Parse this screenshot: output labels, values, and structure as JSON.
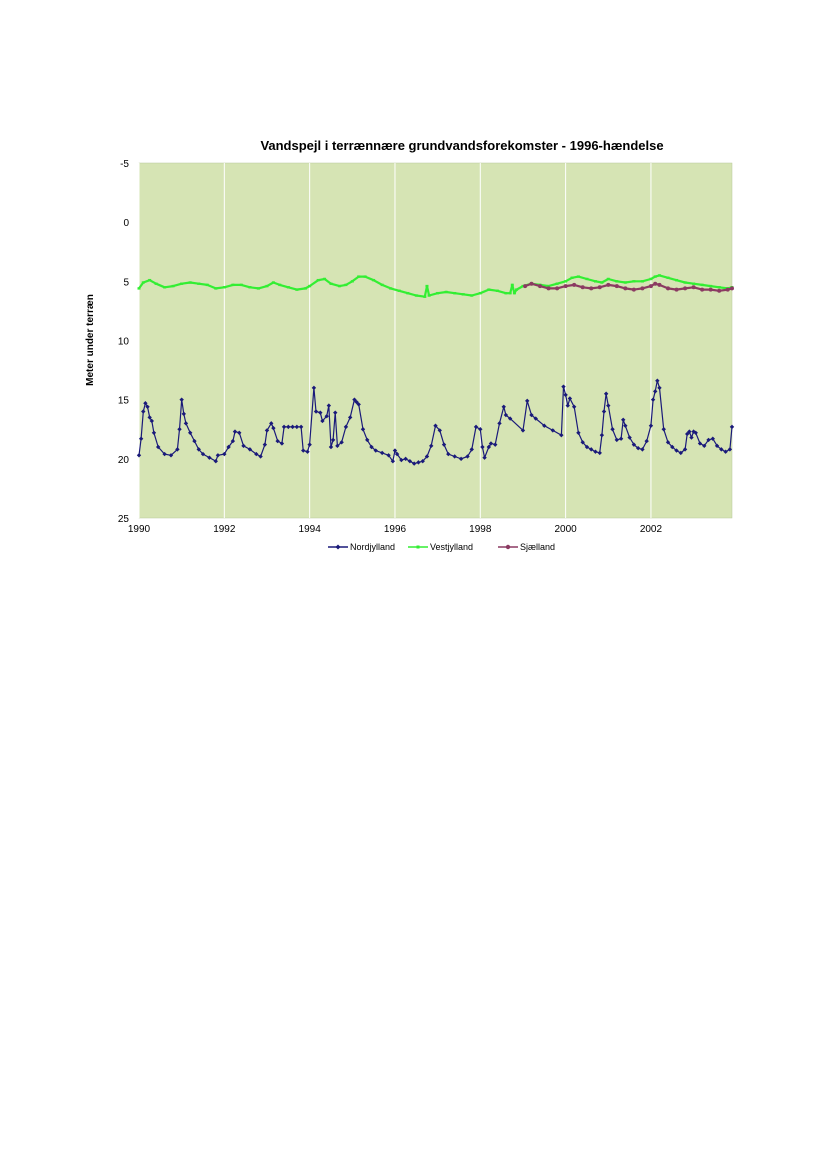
{
  "chart_data": {
    "type": "line",
    "title": "Vandspejl i terrænnære grundvandsforekomster - 1996-hændelse",
    "xlabel": "",
    "ylabel": "Meter under terræn",
    "xlim": [
      1990,
      2003.9
    ],
    "ylim": [
      -5,
      25
    ],
    "y_inverted": true,
    "xticks": [
      "1990",
      "1992",
      "1994",
      "1996",
      "1998",
      "2000",
      "2002"
    ],
    "yticks": [
      "-5",
      "0",
      "5",
      "10",
      "15",
      "20",
      "25"
    ],
    "grid": "vertical",
    "plot_background": "#d6e4b4",
    "legend_position": "bottom",
    "series": [
      {
        "name": "Nordjylland",
        "color": "#1a1a7a",
        "marker": "diamond",
        "points": [
          [
            1990.0,
            19.7
          ],
          [
            1990.05,
            18.3
          ],
          [
            1990.1,
            16.0
          ],
          [
            1990.15,
            15.3
          ],
          [
            1990.2,
            15.6
          ],
          [
            1990.25,
            16.5
          ],
          [
            1990.3,
            16.8
          ],
          [
            1990.35,
            17.8
          ],
          [
            1990.45,
            19.0
          ],
          [
            1990.6,
            19.6
          ],
          [
            1990.75,
            19.7
          ],
          [
            1990.9,
            19.2
          ],
          [
            1990.95,
            17.5
          ],
          [
            1991.0,
            15.0
          ],
          [
            1991.05,
            16.2
          ],
          [
            1991.1,
            17.0
          ],
          [
            1991.2,
            17.8
          ],
          [
            1991.3,
            18.5
          ],
          [
            1991.4,
            19.2
          ],
          [
            1991.5,
            19.6
          ],
          [
            1991.65,
            19.9
          ],
          [
            1991.8,
            20.2
          ],
          [
            1991.85,
            19.7
          ],
          [
            1992.0,
            19.6
          ],
          [
            1992.1,
            19.0
          ],
          [
            1992.2,
            18.5
          ],
          [
            1992.25,
            17.7
          ],
          [
            1992.35,
            17.8
          ],
          [
            1992.45,
            18.9
          ],
          [
            1992.6,
            19.2
          ],
          [
            1992.75,
            19.6
          ],
          [
            1992.85,
            19.8
          ],
          [
            1992.95,
            18.8
          ],
          [
            1993.0,
            17.6
          ],
          [
            1993.1,
            17.0
          ],
          [
            1993.15,
            17.4
          ],
          [
            1993.25,
            18.5
          ],
          [
            1993.35,
            18.7
          ],
          [
            1993.4,
            17.3
          ],
          [
            1993.5,
            17.3
          ],
          [
            1993.6,
            17.3
          ],
          [
            1993.7,
            17.3
          ],
          [
            1993.8,
            17.3
          ],
          [
            1993.85,
            19.3
          ],
          [
            1993.95,
            19.4
          ],
          [
            1994.0,
            18.8
          ],
          [
            1994.1,
            14.0
          ],
          [
            1994.15,
            16.0
          ],
          [
            1994.25,
            16.1
          ],
          [
            1994.3,
            16.8
          ],
          [
            1994.4,
            16.4
          ],
          [
            1994.45,
            15.5
          ],
          [
            1994.5,
            19.0
          ],
          [
            1994.55,
            18.4
          ],
          [
            1994.6,
            16.1
          ],
          [
            1994.65,
            18.9
          ],
          [
            1994.75,
            18.6
          ],
          [
            1994.85,
            17.3
          ],
          [
            1994.95,
            16.5
          ],
          [
            1995.05,
            15.0
          ],
          [
            1995.1,
            15.2
          ],
          [
            1995.15,
            15.4
          ],
          [
            1995.25,
            17.5
          ],
          [
            1995.35,
            18.4
          ],
          [
            1995.45,
            19.0
          ],
          [
            1995.55,
            19.3
          ],
          [
            1995.7,
            19.5
          ],
          [
            1995.85,
            19.7
          ],
          [
            1995.95,
            20.2
          ],
          [
            1996.0,
            19.3
          ],
          [
            1996.05,
            19.6
          ],
          [
            1996.15,
            20.1
          ],
          [
            1996.25,
            20.0
          ],
          [
            1996.35,
            20.2
          ],
          [
            1996.45,
            20.4
          ],
          [
            1996.55,
            20.3
          ],
          [
            1996.65,
            20.2
          ],
          [
            1996.75,
            19.8
          ],
          [
            1996.85,
            18.9
          ],
          [
            1996.95,
            17.2
          ],
          [
            1997.05,
            17.6
          ],
          [
            1997.15,
            18.8
          ],
          [
            1997.25,
            19.6
          ],
          [
            1997.4,
            19.8
          ],
          [
            1997.55,
            20.0
          ],
          [
            1997.7,
            19.8
          ],
          [
            1997.8,
            19.2
          ],
          [
            1997.9,
            17.3
          ],
          [
            1998.0,
            17.5
          ],
          [
            1998.05,
            19.0
          ],
          [
            1998.1,
            19.9
          ],
          [
            1998.2,
            19.0
          ],
          [
            1998.25,
            18.7
          ],
          [
            1998.35,
            18.8
          ],
          [
            1998.45,
            17.0
          ],
          [
            1998.55,
            15.6
          ],
          [
            1998.6,
            16.3
          ],
          [
            1998.7,
            16.6
          ],
          [
            1999.0,
            17.6
          ],
          [
            1999.1,
            15.1
          ],
          [
            1999.2,
            16.3
          ],
          [
            1999.3,
            16.6
          ],
          [
            1999.5,
            17.2
          ],
          [
            1999.7,
            17.6
          ],
          [
            1999.9,
            18.0
          ],
          [
            1999.95,
            13.9
          ],
          [
            2000.0,
            14.6
          ],
          [
            2000.05,
            15.5
          ],
          [
            2000.1,
            14.9
          ],
          [
            2000.2,
            15.6
          ],
          [
            2000.3,
            17.8
          ],
          [
            2000.4,
            18.6
          ],
          [
            2000.5,
            19.0
          ],
          [
            2000.6,
            19.2
          ],
          [
            2000.7,
            19.4
          ],
          [
            2000.8,
            19.5
          ],
          [
            2000.85,
            18.0
          ],
          [
            2000.9,
            16.0
          ],
          [
            2000.95,
            14.5
          ],
          [
            2001.0,
            15.5
          ],
          [
            2001.1,
            17.5
          ],
          [
            2001.2,
            18.4
          ],
          [
            2001.3,
            18.3
          ],
          [
            2001.35,
            16.7
          ],
          [
            2001.4,
            17.2
          ],
          [
            2001.5,
            18.2
          ],
          [
            2001.6,
            18.8
          ],
          [
            2001.7,
            19.1
          ],
          [
            2001.8,
            19.2
          ],
          [
            2001.9,
            18.5
          ],
          [
            2002.0,
            17.2
          ],
          [
            2002.05,
            15.0
          ],
          [
            2002.1,
            14.3
          ],
          [
            2002.15,
            13.4
          ],
          [
            2002.2,
            14.0
          ],
          [
            2002.3,
            17.5
          ],
          [
            2002.4,
            18.6
          ],
          [
            2002.5,
            19.0
          ],
          [
            2002.6,
            19.3
          ],
          [
            2002.7,
            19.5
          ],
          [
            2002.8,
            19.2
          ],
          [
            2002.85,
            17.9
          ],
          [
            2002.9,
            17.7
          ],
          [
            2002.95,
            18.2
          ],
          [
            2003.0,
            17.7
          ],
          [
            2003.05,
            17.8
          ],
          [
            2003.15,
            18.7
          ],
          [
            2003.25,
            18.9
          ],
          [
            2003.35,
            18.4
          ],
          [
            2003.45,
            18.3
          ],
          [
            2003.55,
            18.9
          ],
          [
            2003.65,
            19.2
          ],
          [
            2003.75,
            19.4
          ],
          [
            2003.85,
            19.2
          ],
          [
            2003.9,
            17.3
          ]
        ]
      },
      {
        "name": "Vestjylland",
        "color": "#33ee33",
        "marker": "dash",
        "points": [
          [
            1990.0,
            5.6
          ],
          [
            1990.1,
            5.1
          ],
          [
            1990.25,
            4.9
          ],
          [
            1990.4,
            5.2
          ],
          [
            1990.6,
            5.5
          ],
          [
            1990.8,
            5.4
          ],
          [
            1991.0,
            5.2
          ],
          [
            1991.2,
            5.1
          ],
          [
            1991.4,
            5.2
          ],
          [
            1991.6,
            5.3
          ],
          [
            1991.8,
            5.6
          ],
          [
            1992.0,
            5.5
          ],
          [
            1992.2,
            5.3
          ],
          [
            1992.4,
            5.3
          ],
          [
            1992.6,
            5.5
          ],
          [
            1992.8,
            5.6
          ],
          [
            1993.0,
            5.4
          ],
          [
            1993.15,
            5.1
          ],
          [
            1993.3,
            5.3
          ],
          [
            1993.5,
            5.5
          ],
          [
            1993.7,
            5.7
          ],
          [
            1993.9,
            5.6
          ],
          [
            1994.0,
            5.4
          ],
          [
            1994.2,
            4.9
          ],
          [
            1994.35,
            4.8
          ],
          [
            1994.5,
            5.2
          ],
          [
            1994.7,
            5.4
          ],
          [
            1994.85,
            5.3
          ],
          [
            1995.0,
            5.0
          ],
          [
            1995.15,
            4.6
          ],
          [
            1995.3,
            4.6
          ],
          [
            1995.5,
            4.9
          ],
          [
            1995.7,
            5.3
          ],
          [
            1995.9,
            5.6
          ],
          [
            1996.1,
            5.8
          ],
          [
            1996.3,
            6.0
          ],
          [
            1996.5,
            6.2
          ],
          [
            1996.7,
            6.3
          ],
          [
            1996.75,
            5.4
          ],
          [
            1996.8,
            6.2
          ],
          [
            1997.0,
            6.0
          ],
          [
            1997.2,
            5.9
          ],
          [
            1997.4,
            6.0
          ],
          [
            1997.6,
            6.1
          ],
          [
            1997.8,
            6.2
          ],
          [
            1998.0,
            6.0
          ],
          [
            1998.2,
            5.7
          ],
          [
            1998.4,
            5.8
          ],
          [
            1998.6,
            6.0
          ],
          [
            1998.7,
            6.0
          ],
          [
            1998.75,
            5.3
          ],
          [
            1998.8,
            6.0
          ],
          [
            1998.85,
            5.7
          ],
          [
            1999.0,
            5.4
          ],
          [
            1999.2,
            5.2
          ],
          [
            1999.4,
            5.3
          ],
          [
            1999.6,
            5.4
          ],
          [
            1999.8,
            5.2
          ],
          [
            2000.0,
            5.0
          ],
          [
            2000.15,
            4.7
          ],
          [
            2000.3,
            4.6
          ],
          [
            2000.5,
            4.8
          ],
          [
            2000.7,
            5.0
          ],
          [
            2000.85,
            5.1
          ],
          [
            2001.0,
            4.8
          ],
          [
            2001.2,
            5.0
          ],
          [
            2001.4,
            5.1
          ],
          [
            2001.6,
            5.0
          ],
          [
            2001.8,
            5.0
          ],
          [
            2002.0,
            4.8
          ],
          [
            2002.1,
            4.6
          ],
          [
            2002.2,
            4.5
          ],
          [
            2002.4,
            4.7
          ],
          [
            2002.6,
            4.9
          ],
          [
            2002.8,
            5.1
          ],
          [
            2003.0,
            5.2
          ],
          [
            2003.2,
            5.3
          ],
          [
            2003.4,
            5.4
          ],
          [
            2003.6,
            5.5
          ],
          [
            2003.8,
            5.6
          ],
          [
            2003.9,
            5.5
          ]
        ]
      },
      {
        "name": "Sjælland",
        "color": "#8b3a62",
        "marker": "circle",
        "points": [
          [
            1999.05,
            5.4
          ],
          [
            1999.2,
            5.2
          ],
          [
            1999.4,
            5.4
          ],
          [
            1999.6,
            5.6
          ],
          [
            1999.8,
            5.6
          ],
          [
            2000.0,
            5.4
          ],
          [
            2000.2,
            5.3
          ],
          [
            2000.4,
            5.5
          ],
          [
            2000.6,
            5.6
          ],
          [
            2000.8,
            5.5
          ],
          [
            2001.0,
            5.3
          ],
          [
            2001.2,
            5.4
          ],
          [
            2001.4,
            5.6
          ],
          [
            2001.6,
            5.7
          ],
          [
            2001.8,
            5.6
          ],
          [
            2002.0,
            5.4
          ],
          [
            2002.1,
            5.2
          ],
          [
            2002.2,
            5.3
          ],
          [
            2002.4,
            5.6
          ],
          [
            2002.6,
            5.7
          ],
          [
            2002.8,
            5.6
          ],
          [
            2003.0,
            5.5
          ],
          [
            2003.2,
            5.7
          ],
          [
            2003.4,
            5.7
          ],
          [
            2003.6,
            5.8
          ],
          [
            2003.8,
            5.7
          ],
          [
            2003.9,
            5.6
          ]
        ]
      }
    ]
  }
}
